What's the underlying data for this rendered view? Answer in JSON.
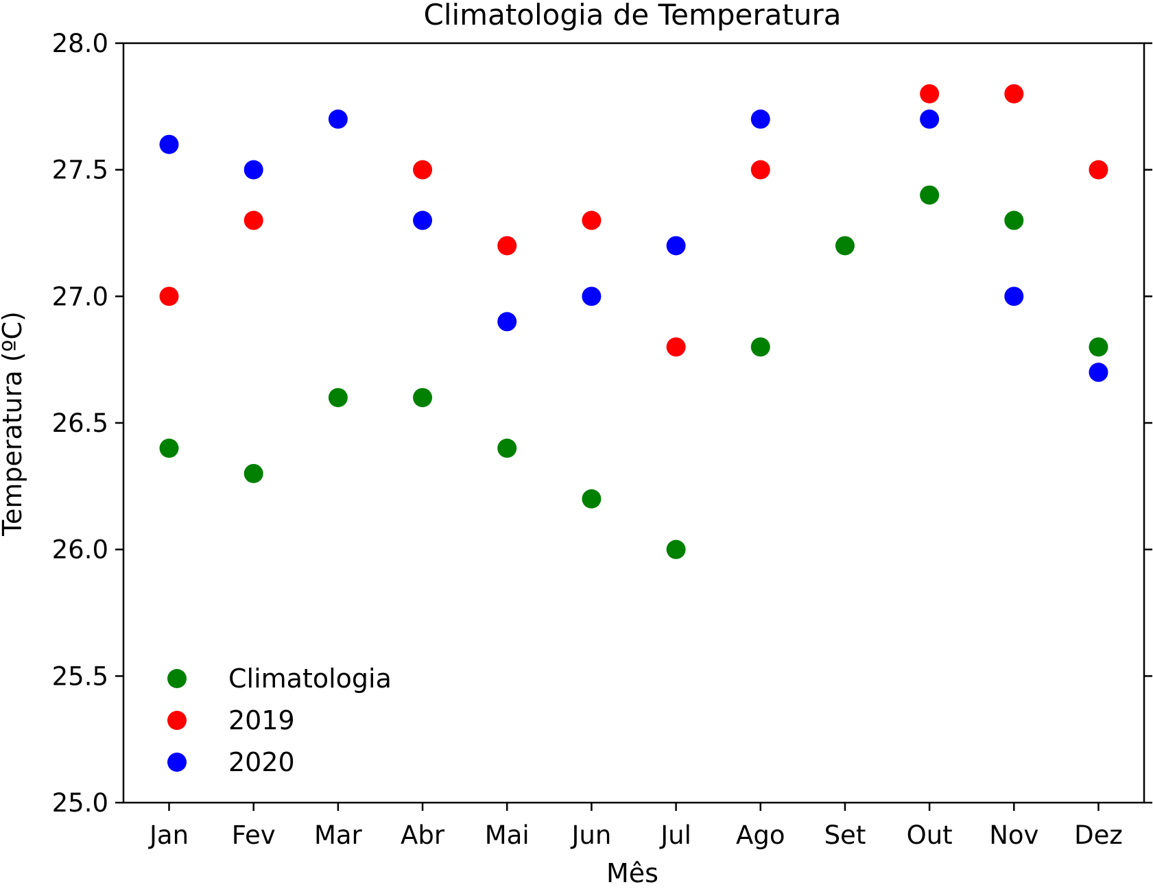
{
  "chart_data": {
    "type": "scatter",
    "title": "Climatologia de Temperatura",
    "xlabel": "Mês",
    "ylabel": "Temperatura (ºC)",
    "categories": [
      "Jan",
      "Fev",
      "Mar",
      "Abr",
      "Mai",
      "Jun",
      "Jul",
      "Ago",
      "Set",
      "Out",
      "Nov",
      "Dez"
    ],
    "ylim": [
      25.0,
      28.0
    ],
    "yticks": [
      "25.0",
      "25.5",
      "26.0",
      "26.5",
      "27.0",
      "27.5",
      "28.0"
    ],
    "grid": false,
    "legend_position": "lower-left",
    "series": [
      {
        "name": "Climatologia",
        "color": "#008000",
        "values": [
          26.4,
          26.3,
          26.6,
          26.6,
          26.4,
          26.2,
          26.0,
          26.8,
          27.2,
          27.4,
          27.3,
          26.8
        ]
      },
      {
        "name": "2019",
        "color": "#ff0000",
        "values": [
          27.0,
          27.3,
          null,
          27.5,
          27.2,
          27.3,
          26.8,
          27.5,
          null,
          27.8,
          27.8,
          27.5
        ]
      },
      {
        "name": "2020",
        "color": "#0000ff",
        "values": [
          27.6,
          27.5,
          27.7,
          27.3,
          26.9,
          27.0,
          27.2,
          27.7,
          null,
          27.7,
          27.0,
          26.7
        ]
      }
    ]
  }
}
